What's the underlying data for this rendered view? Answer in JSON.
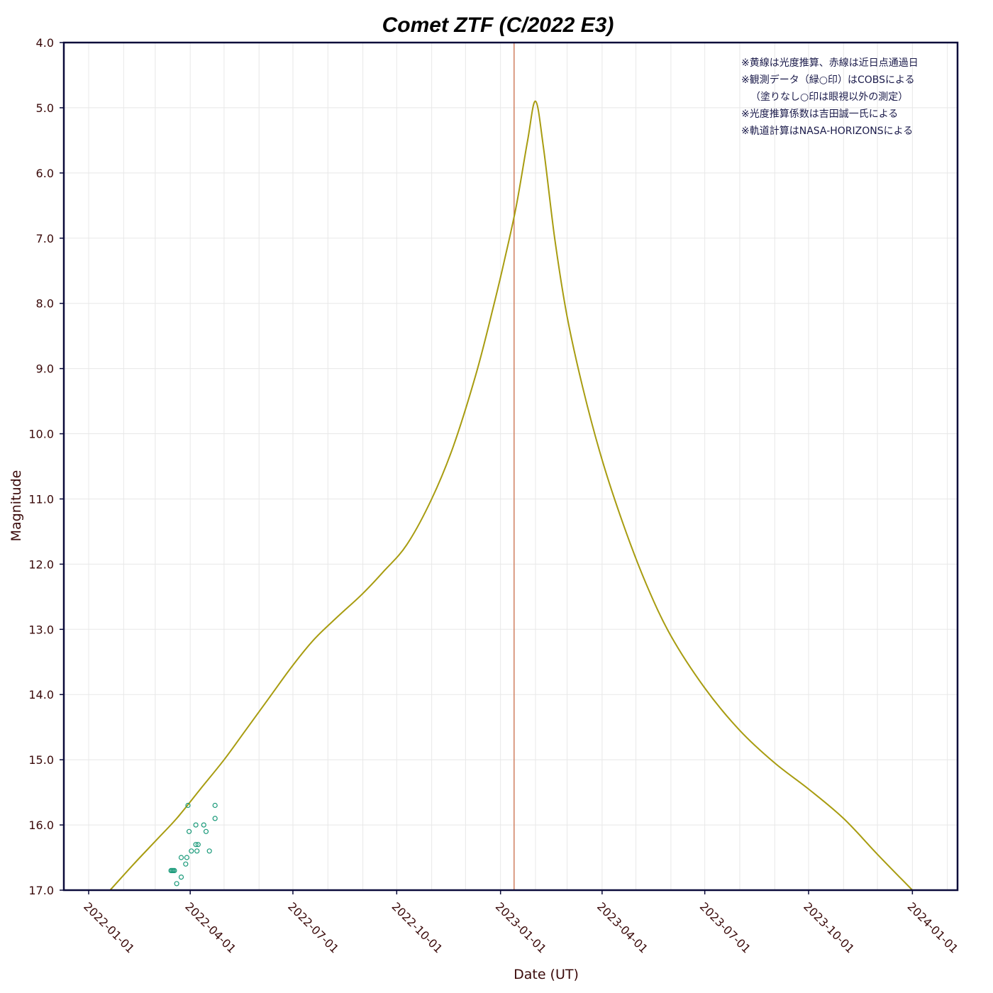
{
  "chart_data": {
    "type": "line",
    "title": "Comet ZTF (C/2022 E3)",
    "xlabel": "Date (UT)",
    "ylabel": "Magnitude",
    "x_tick_labels": [
      "2022-01-01",
      "2022-04-01",
      "2022-07-01",
      "2022-10-01",
      "2023-01-01",
      "2023-04-01",
      "2023-07-01",
      "2023-10-01",
      "2024-01-01"
    ],
    "y_tick_labels": [
      "4.0",
      "5.0",
      "6.0",
      "7.0",
      "8.0",
      "9.0",
      "10.0",
      "11.0",
      "12.0",
      "13.0",
      "14.0",
      "15.0",
      "16.0",
      "17.0"
    ],
    "xlim": [
      "2021-12-10",
      "2024-02-10"
    ],
    "ylim": [
      17.0,
      4.0
    ],
    "y_inverted": true,
    "grid": true,
    "perihelion_date": "2023-01-13",
    "notes": [
      "※黄線は光度推算、赤線は近日点通過日",
      "※観測データ（緑○印）はCOBSによる",
      "（塗りなし○印は眼視以外の測定）",
      "※光度推算係数は吉田誠一氏による",
      "※軌道計算はNASA-HORIZONSによる"
    ],
    "colors": {
      "prediction": "#a89c10",
      "perihelion": "#d08060",
      "observations": "#1a9a7a",
      "frame": "#0a0a3a",
      "grid": "#e8e8e8"
    },
    "series": [
      {
        "name": "光度推算",
        "points": [
          [
            "2022-01-20",
            17.0
          ],
          [
            "2022-02-10",
            16.6
          ],
          [
            "2022-03-01",
            16.25
          ],
          [
            "2022-03-20",
            15.9
          ],
          [
            "2022-04-10",
            15.45
          ],
          [
            "2022-05-01",
            15.0
          ],
          [
            "2022-05-20",
            14.55
          ],
          [
            "2022-06-10",
            14.05
          ],
          [
            "2022-07-01",
            13.55
          ],
          [
            "2022-07-20",
            13.15
          ],
          [
            "2022-08-10",
            12.8
          ],
          [
            "2022-09-01",
            12.45
          ],
          [
            "2022-09-20",
            12.1
          ],
          [
            "2022-10-10",
            11.7
          ],
          [
            "2022-11-01",
            11.0
          ],
          [
            "2022-11-20",
            10.2
          ],
          [
            "2022-12-10",
            9.1
          ],
          [
            "2022-12-25",
            8.1
          ],
          [
            "2023-01-05",
            7.3
          ],
          [
            "2023-01-15",
            6.5
          ],
          [
            "2023-01-25",
            5.5
          ],
          [
            "2023-02-01",
            4.9
          ],
          [
            "2023-02-08",
            5.6
          ],
          [
            "2023-02-18",
            7.0
          ],
          [
            "2023-03-01",
            8.2
          ],
          [
            "2023-03-15",
            9.3
          ],
          [
            "2023-04-01",
            10.4
          ],
          [
            "2023-04-20",
            11.4
          ],
          [
            "2023-05-10",
            12.3
          ],
          [
            "2023-06-01",
            13.1
          ],
          [
            "2023-07-01",
            13.9
          ],
          [
            "2023-08-01",
            14.55
          ],
          [
            "2023-09-01",
            15.05
          ],
          [
            "2023-10-01",
            15.45
          ],
          [
            "2023-11-01",
            15.9
          ],
          [
            "2023-12-01",
            16.45
          ],
          [
            "2024-01-01",
            17.0
          ]
        ]
      },
      {
        "name": "観測データ",
        "points": [
          [
            "2022-03-15",
            16.7
          ],
          [
            "2022-03-16",
            16.7
          ],
          [
            "2022-03-17",
            16.7
          ],
          [
            "2022-03-18",
            16.7
          ],
          [
            "2022-03-20",
            16.9
          ],
          [
            "2022-03-24",
            16.5
          ],
          [
            "2022-03-24",
            16.8
          ],
          [
            "2022-03-28",
            16.6
          ],
          [
            "2022-03-29",
            16.5
          ],
          [
            "2022-03-30",
            15.7
          ],
          [
            "2022-03-31",
            16.1
          ],
          [
            "2022-04-02",
            16.4
          ],
          [
            "2022-04-06",
            16.0
          ],
          [
            "2022-04-06",
            16.3
          ],
          [
            "2022-04-07",
            16.4
          ],
          [
            "2022-04-08",
            16.3
          ],
          [
            "2022-04-13",
            16.0
          ],
          [
            "2022-04-15",
            16.1
          ],
          [
            "2022-04-18",
            16.4
          ],
          [
            "2022-04-23",
            15.7
          ],
          [
            "2022-04-23",
            15.9
          ]
        ]
      }
    ]
  }
}
